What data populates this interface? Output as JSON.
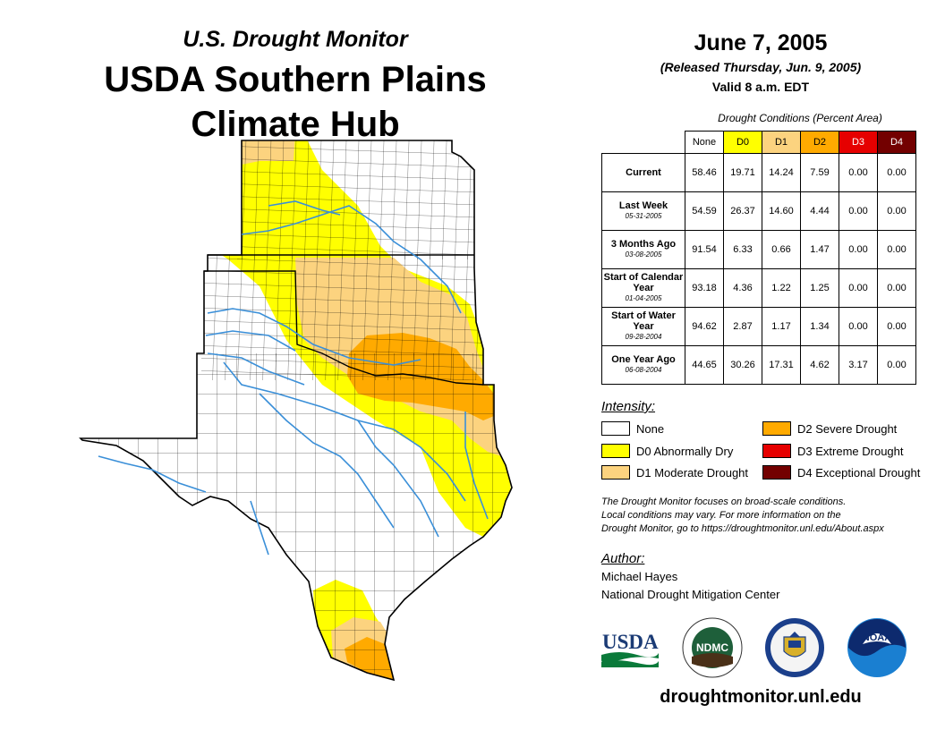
{
  "header": {
    "subtitle": "U.S. Drought Monitor",
    "title_line1": "USDA Southern Plains",
    "title_line2": "Climate Hub",
    "date": "June 7, 2005",
    "released": "(Released Thursday, Jun. 9, 2005)",
    "valid": "Valid 8 a.m. EDT"
  },
  "colors": {
    "none": "#ffffff",
    "d0": "#ffff00",
    "d1": "#fcd37f",
    "d2": "#ffaa00",
    "d3": "#e60000",
    "d4": "#730000",
    "river": "#3a8fd8",
    "border": "#000000"
  },
  "table": {
    "caption": "Drought Conditions (Percent Area)",
    "columns": [
      "None",
      "D0",
      "D1",
      "D2",
      "D3",
      "D4"
    ],
    "rows": [
      {
        "label": "Current",
        "date": "",
        "values": [
          "58.46",
          "19.71",
          "14.24",
          "7.59",
          "0.00",
          "0.00"
        ]
      },
      {
        "label": "Last Week",
        "date": "05-31-2005",
        "values": [
          "54.59",
          "26.37",
          "14.60",
          "4.44",
          "0.00",
          "0.00"
        ]
      },
      {
        "label": "3 Months Ago",
        "date": "03-08-2005",
        "values": [
          "91.54",
          "6.33",
          "0.66",
          "1.47",
          "0.00",
          "0.00"
        ]
      },
      {
        "label": "Start of Calendar Year",
        "date": "01-04-2005",
        "values": [
          "93.18",
          "4.36",
          "1.22",
          "1.25",
          "0.00",
          "0.00"
        ]
      },
      {
        "label": "Start of Water Year",
        "date": "09-28-2004",
        "values": [
          "94.62",
          "2.87",
          "1.17",
          "1.34",
          "0.00",
          "0.00"
        ]
      },
      {
        "label": "One Year Ago",
        "date": "06-08-2004",
        "values": [
          "44.65",
          "30.26",
          "17.31",
          "4.62",
          "3.17",
          "0.00"
        ]
      }
    ]
  },
  "legend": {
    "label": "Intensity:",
    "items": [
      {
        "key": "none",
        "text": "None"
      },
      {
        "key": "d0",
        "text": "D0 Abnormally Dry"
      },
      {
        "key": "d1",
        "text": "D1 Moderate Drought"
      },
      {
        "key": "d2",
        "text": "D2 Severe Drought"
      },
      {
        "key": "d3",
        "text": "D3 Extreme Drought"
      },
      {
        "key": "d4",
        "text": "D4 Exceptional Drought"
      }
    ]
  },
  "note": {
    "line1": "The Drought Monitor focuses on broad-scale conditions.",
    "line2": "Local conditions may vary. For more information on the",
    "line3": "Drought Monitor, go to https://droughtmonitor.unl.edu/About.aspx"
  },
  "author": {
    "label": "Author:",
    "name": "Michael Hayes",
    "org": "National Drought Mitigation Center"
  },
  "logos": {
    "usda": "USDA",
    "ndmc": "NDMC",
    "doc": "doc-seal-icon",
    "noaa": "NOAA"
  },
  "footer": {
    "url": "droughtmonitor.unl.edu"
  }
}
